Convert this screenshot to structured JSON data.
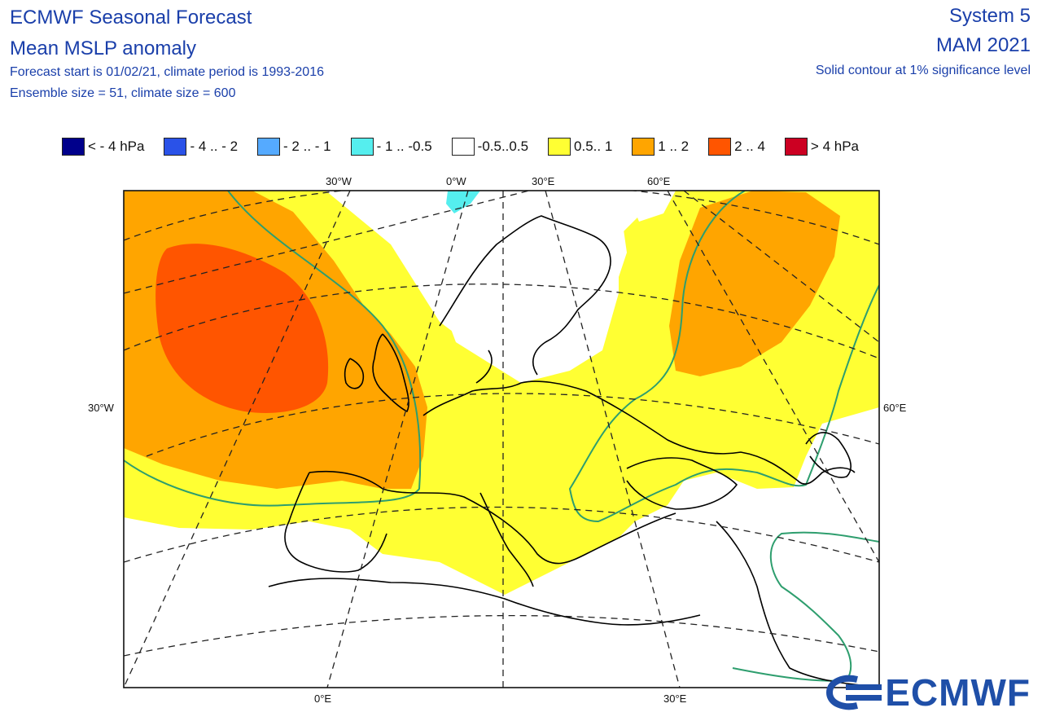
{
  "header": {
    "title": "ECMWF Seasonal Forecast",
    "subtitle": "Mean MSLP anomaly",
    "info_line_1": "Forecast start is 01/02/21, climate period is 1993-2016",
    "info_line_2": "Ensemble size = 51, climate size = 600",
    "system": "System 5",
    "season": "MAM 2021",
    "significance": "Solid contour at 1% significance level"
  },
  "legend": [
    {
      "label": "< - 4 hPa",
      "color": "#00008b"
    },
    {
      "label": "- 4 .. - 2",
      "color": "#2a52e8"
    },
    {
      "label": "- 2 .. - 1",
      "color": "#55aaff"
    },
    {
      "label": "- 1 .. -0.5",
      "color": "#55eeee"
    },
    {
      "label": "-0.5..0.5",
      "color": "#ffffff"
    },
    {
      "label": "0.5.. 1",
      "color": "#ffff33"
    },
    {
      "label": "1 .. 2",
      "color": "#ffa500"
    },
    {
      "label": "2 .. 4",
      "color": "#ff5500"
    },
    {
      "label": "> 4 hPa",
      "color": "#cc0022"
    }
  ],
  "axis_labels": {
    "top": [
      "30°W",
      "0°W",
      "30°E",
      "60°E"
    ],
    "bottom": [
      "0°E",
      "30°E"
    ],
    "left": "30°W",
    "right": "60°E"
  },
  "logo": "ECMWF",
  "map_colors": {
    "positive_weak": "#ffff33",
    "positive_mid": "#ffa500",
    "positive_strong": "#ff5500",
    "negative_weak": "#55eeee",
    "significance_contour": "#2e9e6e",
    "coastline": "#000000"
  }
}
